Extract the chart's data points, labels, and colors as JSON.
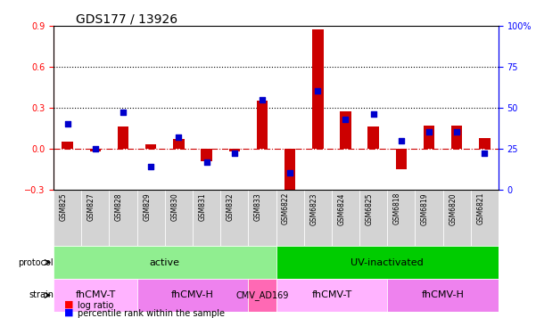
{
  "title": "GDS177 / 13926",
  "samples": [
    "GSM825",
    "GSM827",
    "GSM828",
    "GSM829",
    "GSM830",
    "GSM831",
    "GSM832",
    "GSM833",
    "GSM6822",
    "GSM6823",
    "GSM6824",
    "GSM6825",
    "GSM6818",
    "GSM6819",
    "GSM6820",
    "GSM6821"
  ],
  "log_ratio": [
    0.05,
    -0.02,
    0.16,
    0.03,
    0.07,
    -0.09,
    -0.02,
    0.35,
    -0.35,
    0.87,
    0.27,
    0.16,
    -0.15,
    0.17,
    0.17,
    0.08
  ],
  "percentile": [
    0.4,
    0.25,
    0.47,
    0.14,
    0.32,
    0.17,
    0.22,
    0.55,
    0.1,
    0.6,
    0.43,
    0.46,
    0.3,
    0.35,
    0.35,
    0.22
  ],
  "ylim_left": [
    -0.3,
    0.9
  ],
  "ylim_right": [
    0,
    100
  ],
  "yticks_left": [
    -0.3,
    0.0,
    0.3,
    0.6,
    0.9
  ],
  "yticks_right": [
    0,
    25,
    50,
    75,
    100
  ],
  "hlines": [
    0.3,
    0.6
  ],
  "protocol_groups": [
    {
      "label": "active",
      "start": 0,
      "end": 8,
      "color": "#90EE90"
    },
    {
      "label": "UV-inactivated",
      "start": 8,
      "end": 16,
      "color": "#00CC00"
    }
  ],
  "strain_groups": [
    {
      "label": "fhCMV-T",
      "start": 0,
      "end": 3,
      "color": "#FFB3FF"
    },
    {
      "label": "fhCMV-H",
      "start": 3,
      "end": 7,
      "color": "#EE82EE"
    },
    {
      "label": "CMV_AD169",
      "start": 7,
      "end": 8,
      "color": "#FF69B4"
    },
    {
      "label": "fhCMV-T",
      "start": 8,
      "end": 12,
      "color": "#FFB3FF"
    },
    {
      "label": "fhCMV-H",
      "start": 12,
      "end": 16,
      "color": "#EE82EE"
    }
  ],
  "bar_color": "#CC0000",
  "dot_color": "#0000CC",
  "zero_line_color": "#CC0000",
  "grid_color": "#000000"
}
